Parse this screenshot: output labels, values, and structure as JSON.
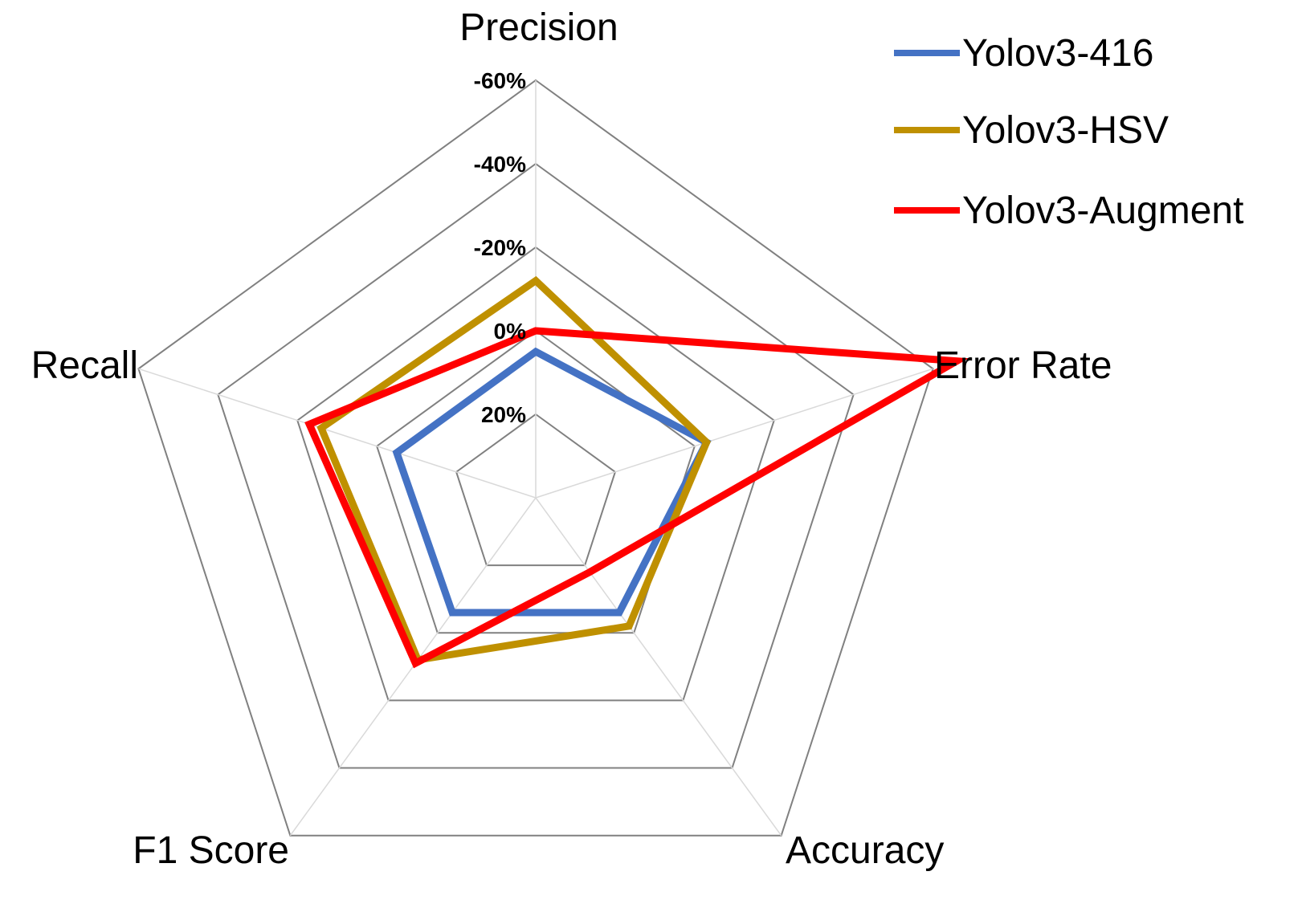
{
  "chart_data": {
    "type": "radar",
    "title": "",
    "axes": [
      "Precision",
      "Error Rate",
      "Accuracy",
      "F1 Score",
      "Recall"
    ],
    "tick_labels": [
      "-60%",
      "-40%",
      "-20%",
      "0%",
      "20%"
    ],
    "r_range": [
      -60,
      40
    ],
    "r_ticks": [
      40,
      20,
      0,
      -20,
      -40,
      -60
    ],
    "grid": true,
    "legend_position": "top-right",
    "series": [
      {
        "name": "Yolov3-416",
        "color": "#4472C4",
        "values": [
          5,
          -3,
          6,
          6,
          5
        ]
      },
      {
        "name": "Yolov3-HSV",
        "color": "#BF9000",
        "values": [
          -12,
          -3,
          2,
          -8,
          -14
        ]
      },
      {
        "name": "Yolov3-Augment",
        "color": "#FF0000",
        "values": [
          0,
          -66,
          18,
          -9,
          -17
        ]
      }
    ]
  }
}
